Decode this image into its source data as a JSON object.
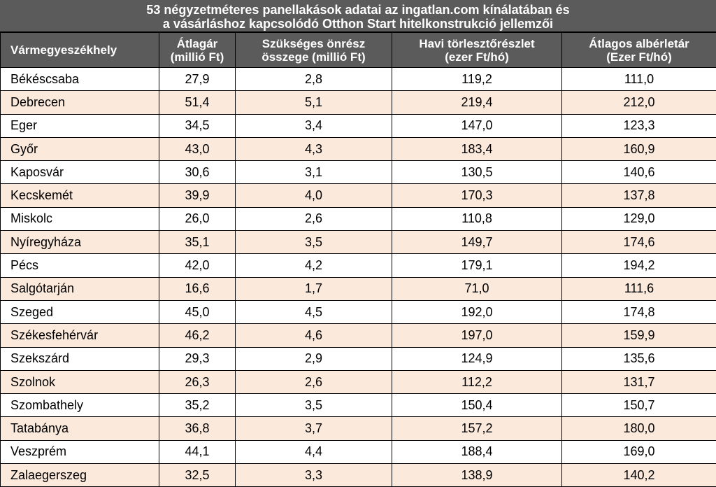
{
  "title": {
    "line1": "53 négyzetméteres panellakások adatai az ingatlan.com kínálatában és",
    "line2": "a vásárláshoz kapcsolódó Otthon Start hitelkonstrukció jellemzői"
  },
  "columns": [
    {
      "line1": "Vármegyeszékhely",
      "line2": ""
    },
    {
      "line1": "Átlagár",
      "line2": "(millió Ft)"
    },
    {
      "line1": "Szükséges önrész",
      "line2": "összege (millió Ft)"
    },
    {
      "line1": "Havi törlesztőrészlet",
      "line2": "(ezer Ft/hó)"
    },
    {
      "line1": "Átlagos albérletár",
      "line2": "(Ezer Ft/hó)"
    }
  ],
  "rows": [
    [
      "Békéscsaba",
      "27,9",
      "2,8",
      "119,2",
      "111,0"
    ],
    [
      "Debrecen",
      "51,4",
      "5,1",
      "219,4",
      "212,0"
    ],
    [
      "Eger",
      "34,5",
      "3,4",
      "147,0",
      "123,3"
    ],
    [
      "Győr",
      "43,0",
      "4,3",
      "183,4",
      "160,9"
    ],
    [
      "Kaposvár",
      "30,6",
      "3,1",
      "130,5",
      "140,6"
    ],
    [
      "Kecskemét",
      "39,9",
      "4,0",
      "170,3",
      "137,8"
    ],
    [
      "Miskolc",
      "26,0",
      "2,6",
      "110,8",
      "129,0"
    ],
    [
      "Nyíregyháza",
      "35,1",
      "3,5",
      "149,7",
      "174,6"
    ],
    [
      "Pécs",
      "42,0",
      "4,2",
      "179,1",
      "194,2"
    ],
    [
      "Salgótarján",
      "16,6",
      "1,7",
      "71,0",
      "111,6"
    ],
    [
      "Szeged",
      "45,0",
      "4,5",
      "192,0",
      "174,8"
    ],
    [
      "Székesfehérvár",
      "46,2",
      "4,6",
      "197,0",
      "159,9"
    ],
    [
      "Szekszárd",
      "29,3",
      "2,9",
      "124,9",
      "135,6"
    ],
    [
      "Szolnok",
      "26,3",
      "2,6",
      "112,2",
      "131,7"
    ],
    [
      "Szombathely",
      "35,2",
      "3,5",
      "150,4",
      "150,7"
    ],
    [
      "Tatabánya",
      "36,8",
      "3,7",
      "157,2",
      "180,0"
    ],
    [
      "Veszprém",
      "44,1",
      "4,4",
      "188,4",
      "169,0"
    ],
    [
      "Zalaegerszeg",
      "32,5",
      "3,3",
      "138,9",
      "140,2"
    ]
  ],
  "colors": {
    "header_bg": "#5b5b5b",
    "alt_row_bg": "#fbe9dc"
  }
}
